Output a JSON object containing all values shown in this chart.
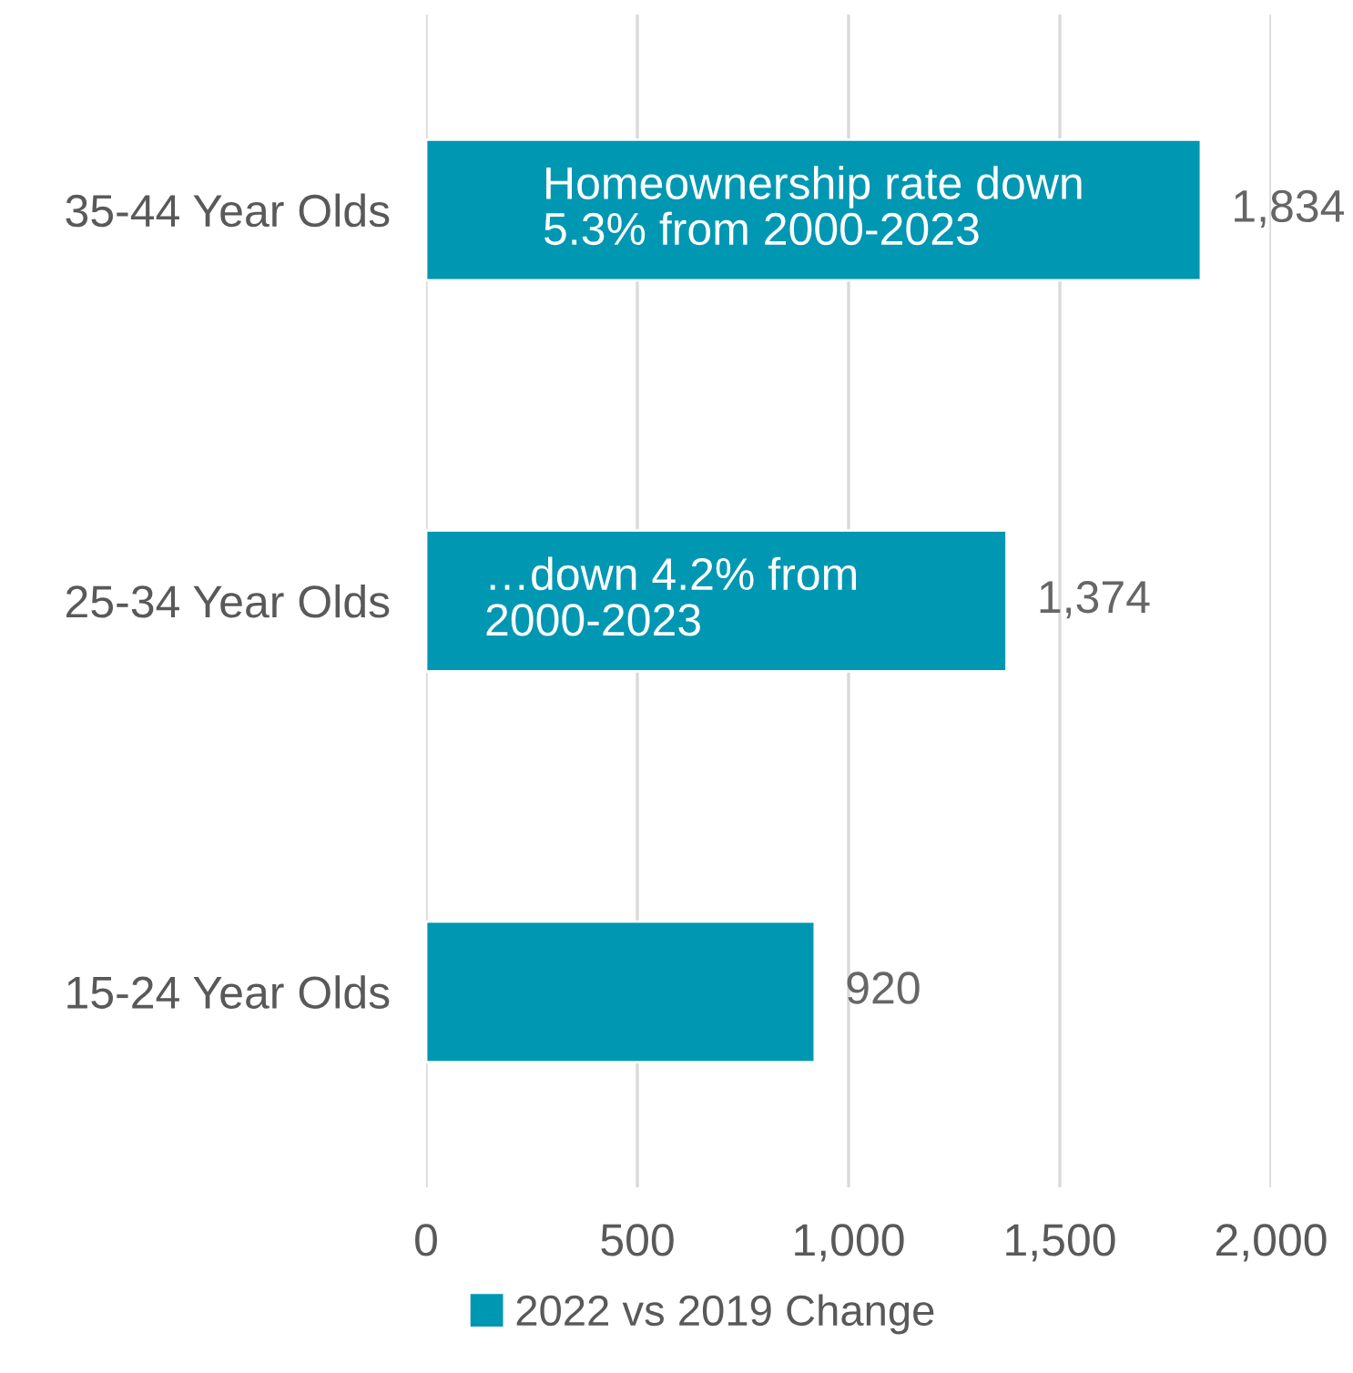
{
  "chart_data": {
    "type": "bar",
    "orientation": "horizontal",
    "categories": [
      "35-44 Year Olds",
      "25-34 Year Olds",
      "15-24 Year Olds"
    ],
    "series": [
      {
        "name": "2022 vs 2019 Change",
        "color": "#0097b2",
        "values": [
          1834,
          1374,
          920
        ]
      }
    ],
    "xlim": [
      0,
      2000
    ],
    "xticks": [
      0,
      500,
      {
        "value": 1000,
        "label": "1,000"
      },
      {
        "value": 1500,
        "label": "1,500"
      },
      {
        "value": 2000,
        "label": "2,000"
      }
    ],
    "value_labels": [
      "1,834",
      "1,374",
      "920"
    ],
    "annotations": [
      "Homeownership rate down\n5.3% from 2000-2023",
      "…down 4.2% from\n2000-2023"
    ],
    "grid": "x",
    "legend": "bottom"
  }
}
